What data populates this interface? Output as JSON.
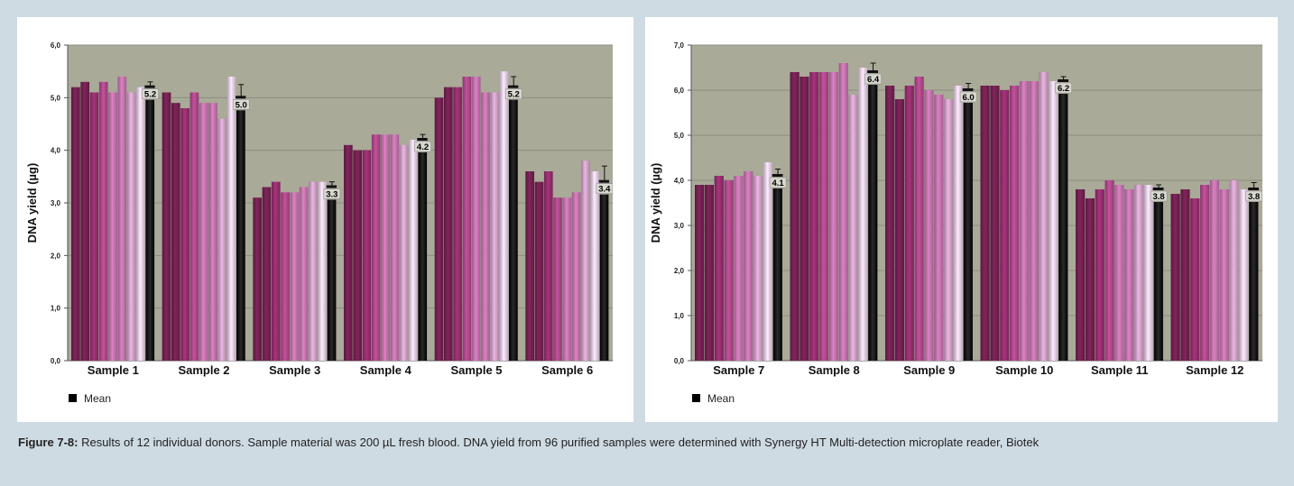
{
  "colors": {
    "background": "#cfdbe3",
    "plot_area": "#a9aa98",
    "mean_bar": "#000000",
    "donor_gradient": [
      "#6e1f4e",
      "#8e2c69",
      "#a84585",
      "#bb6ea6",
      "#c99ac0",
      "#dcc6da"
    ]
  },
  "caption": {
    "label": "Figure 7-8:",
    "text": " Results of 12 individual  donors. Sample material was 200 µL fresh blood. DNA yield from 96 purified samples were determined with Synergy HT Multi-detection microplate reader, Biotek"
  },
  "chart_data": [
    {
      "type": "bar",
      "ylabel": "DNA yield (µg)",
      "ylim": [
        0,
        6
      ],
      "yticks": [
        "0,0",
        "1,0",
        "2,0",
        "3,0",
        "4,0",
        "5,0",
        "6,0"
      ],
      "grid": true,
      "legend": {
        "position": "bottom-left",
        "entries": [
          "Mean"
        ]
      },
      "categories": [
        "Sample 1",
        "Sample 2",
        "Sample 3",
        "Sample 4",
        "Sample 5",
        "Sample 6"
      ],
      "donor_values": [
        [
          5.2,
          5.3,
          5.1,
          5.3,
          5.1,
          5.4,
          5.1,
          5.2
        ],
        [
          5.1,
          4.9,
          4.8,
          5.1,
          4.9,
          4.9,
          4.6,
          5.4
        ],
        [
          3.1,
          3.3,
          3.4,
          3.2,
          3.2,
          3.3,
          3.4,
          3.4
        ],
        [
          4.1,
          4.0,
          4.0,
          4.3,
          4.3,
          4.3,
          4.1,
          4.2
        ],
        [
          5.0,
          5.2,
          5.2,
          5.4,
          5.4,
          5.1,
          5.1,
          5.5
        ],
        [
          3.6,
          3.4,
          3.6,
          3.1,
          3.1,
          3.2,
          3.8,
          3.6
        ]
      ],
      "mean": [
        5.2,
        5.0,
        3.3,
        4.2,
        5.2,
        3.4
      ],
      "mean_labels": [
        "5.2",
        "5.0",
        "3.3",
        "4.2",
        "5.2",
        "3.4"
      ],
      "error": [
        0.1,
        0.25,
        0.1,
        0.1,
        0.2,
        0.3
      ]
    },
    {
      "type": "bar",
      "ylabel": "DNA yield (µg)",
      "ylim": [
        0,
        7
      ],
      "yticks": [
        "0,0",
        "1,0",
        "2,0",
        "3,0",
        "4,0",
        "5,0",
        "6,0",
        "7,0"
      ],
      "grid": true,
      "legend": {
        "position": "bottom-left",
        "entries": [
          "Mean"
        ]
      },
      "categories": [
        "Sample 7",
        "Sample 8",
        "Sample 9",
        "Sample 10",
        "Sample 11",
        "Sample 12"
      ],
      "donor_values": [
        [
          3.9,
          3.9,
          4.1,
          4.0,
          4.1,
          4.2,
          4.1,
          4.4
        ],
        [
          6.4,
          6.3,
          6.4,
          6.4,
          6.4,
          6.6,
          5.9,
          6.5
        ],
        [
          6.1,
          5.8,
          6.1,
          6.3,
          6.0,
          5.9,
          5.8,
          6.1
        ],
        [
          6.1,
          6.1,
          6.0,
          6.1,
          6.2,
          6.2,
          6.4,
          6.2
        ],
        [
          3.8,
          3.6,
          3.8,
          4.0,
          3.9,
          3.8,
          3.9,
          3.9
        ],
        [
          3.7,
          3.8,
          3.6,
          3.9,
          4.0,
          3.8,
          4.0,
          3.8
        ]
      ],
      "mean": [
        4.1,
        6.4,
        6.0,
        6.2,
        3.8,
        3.8
      ],
      "mean_labels": [
        "4.1",
        "6.4",
        "6.0",
        "6.2",
        "3.8",
        "3.8"
      ],
      "error": [
        0.15,
        0.2,
        0.15,
        0.1,
        0.1,
        0.15
      ]
    }
  ]
}
